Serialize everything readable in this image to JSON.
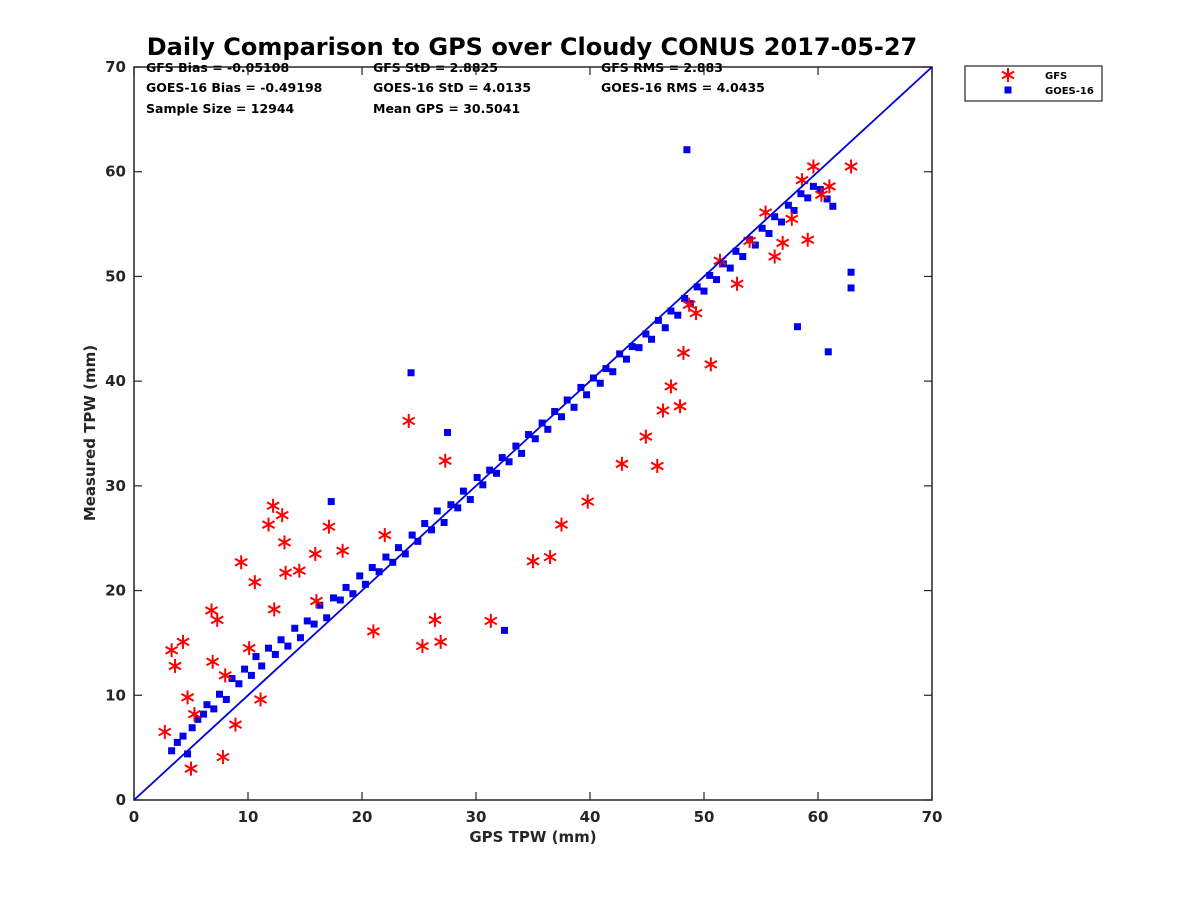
{
  "chart_data": {
    "type": "scatter",
    "title": "Daily Comparison to GPS over Cloudy CONUS 2017-05-27",
    "xlabel": "GPS TPW (mm)",
    "ylabel": "Measured TPW (mm)",
    "xlim": [
      0,
      70
    ],
    "ylim": [
      0,
      70
    ],
    "xticks": [
      "0",
      "10",
      "20",
      "30",
      "40",
      "50",
      "60",
      "70"
    ],
    "yticks": [
      "0",
      "10",
      "20",
      "30",
      "40",
      "50",
      "60",
      "70"
    ],
    "grid": false,
    "legend_position": "outside-top-right",
    "reference_line": {
      "x": [
        0,
        70
      ],
      "y": [
        0,
        70
      ],
      "color": "#0000dd"
    },
    "stats": [
      [
        "GFS Bias = -0.05108",
        "GFS StD = 2.8825",
        "GFS RMS = 2.883"
      ],
      [
        "GOES-16 Bias = -0.49198",
        "GOES-16 StD = 4.0135",
        "GOES-16 RMS = 4.0435"
      ],
      [
        "Sample Size = 12944",
        "Mean GPS = 30.5041",
        ""
      ]
    ],
    "series": [
      {
        "name": "GFS",
        "marker": "asterisk",
        "color": "#ff0000",
        "x": [
          2.7,
          3.3,
          3.6,
          4.3,
          4.7,
          5.0,
          5.3,
          6.8,
          7.3,
          7.8,
          9.4,
          10.6,
          11.8,
          12.2,
          13.0,
          13.2,
          14.5,
          15.9,
          17.1,
          18.3,
          21.0,
          22.0,
          24.1,
          25.3,
          26.4,
          26.9,
          27.3,
          31.3,
          35.0,
          36.5,
          37.5,
          39.8,
          42.8,
          44.9,
          45.9,
          46.4,
          47.1,
          47.9,
          48.2,
          48.7,
          49.3,
          50.6,
          51.4,
          52.9,
          54.0,
          55.4,
          56.2,
          56.9,
          57.7,
          58.6,
          59.1,
          59.6,
          60.3,
          61.0,
          62.9,
          6.9,
          8.0,
          12.3,
          13.3,
          10.1,
          16.0,
          8.9,
          11.1
        ],
        "y": [
          6.5,
          14.3,
          12.8,
          15.1,
          9.8,
          3.0,
          8.2,
          18.1,
          17.2,
          4.1,
          22.7,
          20.8,
          26.3,
          28.1,
          27.2,
          24.6,
          21.9,
          23.5,
          26.1,
          23.8,
          16.1,
          25.3,
          36.2,
          14.7,
          17.2,
          15.1,
          32.4,
          17.1,
          22.8,
          23.2,
          26.3,
          28.5,
          32.1,
          34.7,
          31.9,
          37.2,
          39.5,
          37.6,
          42.7,
          47.3,
          46.5,
          41.6,
          51.5,
          49.3,
          53.4,
          56.1,
          51.9,
          53.2,
          55.5,
          59.2,
          53.5,
          60.5,
          57.8,
          58.6,
          60.5,
          13.2,
          11.9,
          18.2,
          21.7,
          14.5,
          19.0,
          7.2,
          9.6
        ]
      },
      {
        "name": "GOES-16",
        "marker": "square",
        "color": "#0000ee",
        "x": [
          3.3,
          3.8,
          4.3,
          4.7,
          5.1,
          5.6,
          6.1,
          6.4,
          7.0,
          7.5,
          8.1,
          8.6,
          9.2,
          9.7,
          10.3,
          10.7,
          11.2,
          11.8,
          12.4,
          12.9,
          13.5,
          14.1,
          14.6,
          15.2,
          15.8,
          16.3,
          16.9,
          17.5,
          18.1,
          18.6,
          19.2,
          19.8,
          20.3,
          20.9,
          21.5,
          22.1,
          22.7,
          23.2,
          23.8,
          24.4,
          24.9,
          25.5,
          26.1,
          26.6,
          27.2,
          27.8,
          28.4,
          28.9,
          29.5,
          30.1,
          30.6,
          31.2,
          31.8,
          32.3,
          32.9,
          33.5,
          34.0,
          34.6,
          35.2,
          35.8,
          36.3,
          36.9,
          37.5,
          38.0,
          38.6,
          39.2,
          39.7,
          40.3,
          40.9,
          41.4,
          42.0,
          42.6,
          43.2,
          43.7,
          44.3,
          44.9,
          45.4,
          46.0,
          46.6,
          47.1,
          47.7,
          48.3,
          48.8,
          49.4,
          50.0,
          50.5,
          51.1,
          51.7,
          52.3,
          52.8,
          53.4,
          54.0,
          54.5,
          55.1,
          55.7,
          56.2,
          56.8,
          57.4,
          57.9,
          58.5,
          59.1,
          59.6,
          60.2,
          60.8,
          61.3,
          62.9,
          62.9,
          60.9,
          58.2,
          48.5,
          24.3,
          27.5,
          32.5,
          17.3
        ],
        "y": [
          4.7,
          5.5,
          6.1,
          4.4,
          6.9,
          7.7,
          8.2,
          9.1,
          8.7,
          10.1,
          9.6,
          11.6,
          11.1,
          12.5,
          11.9,
          13.7,
          12.8,
          14.5,
          13.9,
          15.3,
          14.7,
          16.4,
          15.5,
          17.1,
          16.8,
          18.6,
          17.4,
          19.3,
          19.1,
          20.3,
          19.7,
          21.4,
          20.6,
          22.2,
          21.8,
          23.2,
          22.7,
          24.1,
          23.5,
          25.3,
          24.7,
          26.4,
          25.8,
          27.6,
          26.5,
          28.2,
          27.9,
          29.5,
          28.7,
          30.8,
          30.1,
          31.5,
          31.2,
          32.7,
          32.3,
          33.8,
          33.1,
          34.9,
          34.5,
          36.0,
          35.4,
          37.1,
          36.6,
          38.2,
          37.5,
          39.4,
          38.7,
          40.3,
          39.8,
          41.2,
          40.9,
          42.6,
          42.1,
          43.3,
          43.2,
          44.5,
          44.0,
          45.8,
          45.1,
          46.7,
          46.3,
          47.9,
          47.4,
          49.0,
          48.6,
          50.1,
          49.7,
          51.2,
          50.8,
          52.4,
          51.9,
          53.5,
          53.0,
          54.6,
          54.1,
          55.7,
          55.2,
          56.8,
          56.3,
          57.9,
          57.5,
          58.6,
          58.3,
          57.4,
          56.7,
          50.4,
          48.9,
          42.8,
          45.2,
          62.1,
          40.8,
          35.1,
          16.2,
          28.5
        ]
      }
    ]
  }
}
